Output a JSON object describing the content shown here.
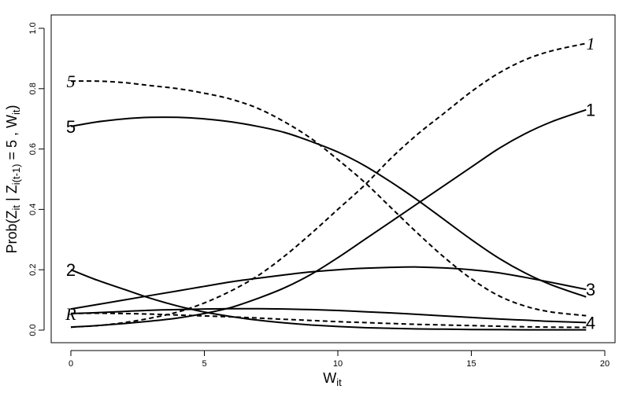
{
  "chart_data": {
    "type": "line",
    "title": "",
    "xlabel": "W",
    "xlabel_sub": "it",
    "ylabel_parts": {
      "prefix": "Prob(Z",
      "sub1": "it",
      "mid": " | Z",
      "sub2": "i(t-1)",
      "mid2": " = 5 , W",
      "sub3": "it",
      "suffix": ")"
    },
    "xlim": [
      0,
      20
    ],
    "ylim": [
      0,
      1
    ],
    "xticks": [
      "0",
      "5",
      "10",
      "15",
      "20"
    ],
    "yticks": [
      "0.0",
      "0.2",
      "0.4",
      "0.6",
      "0.8",
      "1.0"
    ],
    "grid": false,
    "legend": "none",
    "x": [
      0,
      1,
      2,
      3,
      4,
      5,
      6,
      7,
      8,
      9,
      10,
      11,
      12,
      13,
      14,
      15,
      16,
      17,
      18,
      19.3
    ],
    "series": [
      {
        "name": "1",
        "style": "solid",
        "label_end": "1",
        "values": [
          0.01,
          0.015,
          0.022,
          0.03,
          0.04,
          0.055,
          0.075,
          0.105,
          0.14,
          0.185,
          0.24,
          0.3,
          0.36,
          0.42,
          0.48,
          0.54,
          0.6,
          0.65,
          0.69,
          0.73
        ]
      },
      {
        "name": "2",
        "style": "solid",
        "label_start": "2",
        "values": [
          0.2,
          0.165,
          0.135,
          0.105,
          0.08,
          0.06,
          0.045,
          0.033,
          0.024,
          0.017,
          0.012,
          0.008,
          0.006,
          0.004,
          0.003,
          0.002,
          0.0015,
          0.001,
          0.001,
          0.001
        ]
      },
      {
        "name": "3",
        "style": "solid",
        "label_end": "3",
        "values": [
          0.07,
          0.085,
          0.1,
          0.115,
          0.13,
          0.145,
          0.16,
          0.172,
          0.183,
          0.193,
          0.2,
          0.205,
          0.208,
          0.209,
          0.206,
          0.2,
          0.19,
          0.175,
          0.158,
          0.135
        ]
      },
      {
        "name": "4",
        "style": "solid",
        "label_end": "4",
        "values": [
          0.055,
          0.058,
          0.062,
          0.066,
          0.068,
          0.07,
          0.071,
          0.071,
          0.07,
          0.068,
          0.065,
          0.061,
          0.057,
          0.052,
          0.047,
          0.042,
          0.037,
          0.033,
          0.029,
          0.025
        ]
      },
      {
        "name": "5",
        "style": "solid",
        "label_start": "5",
        "values": [
          0.675,
          0.69,
          0.7,
          0.705,
          0.705,
          0.7,
          0.69,
          0.675,
          0.655,
          0.625,
          0.59,
          0.545,
          0.49,
          0.43,
          0.365,
          0.3,
          0.24,
          0.19,
          0.15,
          0.11
        ]
      },
      {
        "name": "1",
        "style": "dashed",
        "label_end": "1",
        "values": [
          0.01,
          0.015,
          0.025,
          0.04,
          0.06,
          0.09,
          0.13,
          0.18,
          0.245,
          0.32,
          0.4,
          0.48,
          0.57,
          0.65,
          0.72,
          0.79,
          0.85,
          0.895,
          0.925,
          0.95
        ]
      },
      {
        "name": "5",
        "style": "dashed",
        "label_start": "5",
        "values": [
          0.825,
          0.825,
          0.82,
          0.81,
          0.8,
          0.785,
          0.765,
          0.735,
          0.69,
          0.635,
          0.565,
          0.49,
          0.405,
          0.32,
          0.24,
          0.17,
          0.115,
          0.08,
          0.06,
          0.048
        ]
      },
      {
        "name": "R",
        "style": "dashed",
        "label_start": "R",
        "values": [
          0.055,
          0.056,
          0.055,
          0.053,
          0.05,
          0.047,
          0.044,
          0.04,
          0.036,
          0.032,
          0.028,
          0.025,
          0.022,
          0.019,
          0.017,
          0.015,
          0.013,
          0.011,
          0.01,
          0.009
        ]
      }
    ]
  }
}
